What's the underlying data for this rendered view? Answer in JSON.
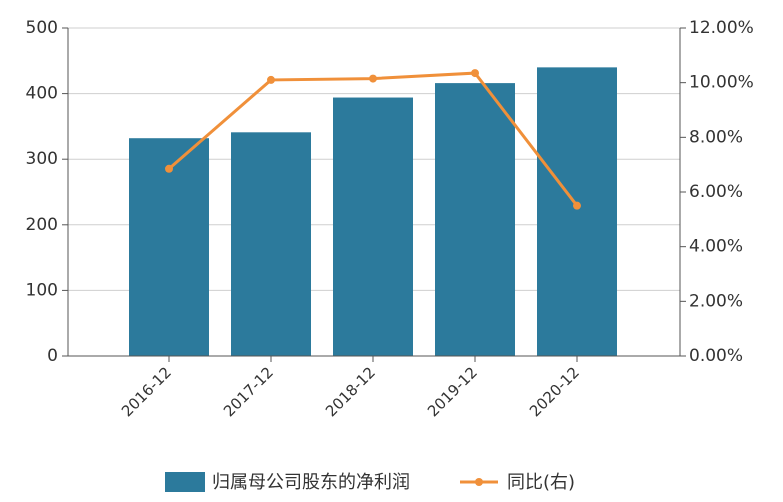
{
  "chart_data": {
    "type": "bar",
    "categories": [
      "2016-12",
      "2017-12",
      "2018-12",
      "2019-12",
      "2020-12"
    ],
    "series": [
      {
        "name": "归属母公司股东的净利润",
        "type": "bar",
        "color": "#2c7a9c",
        "values": [
          332,
          341,
          394,
          416,
          440
        ]
      },
      {
        "name": "同比(右)",
        "type": "line",
        "axis": "y2",
        "color": "#f0903a",
        "values": [
          6.85,
          10.1,
          10.15,
          10.35,
          5.5
        ]
      }
    ],
    "ylim": [
      0,
      500
    ],
    "yticks": [
      0,
      100,
      200,
      300,
      400,
      500
    ],
    "y2lim": [
      0,
      12
    ],
    "y2ticks": [
      {
        "value": 0,
        "label": "0.00%"
      },
      {
        "value": 2,
        "label": "2.00%"
      },
      {
        "value": 4,
        "label": "4.00%"
      },
      {
        "value": 6,
        "label": "6.00%"
      },
      {
        "value": 8,
        "label": "8.00%"
      },
      {
        "value": 10,
        "label": "10.00%"
      },
      {
        "value": 12,
        "label": "12.00%"
      }
    ],
    "grid": true
  }
}
